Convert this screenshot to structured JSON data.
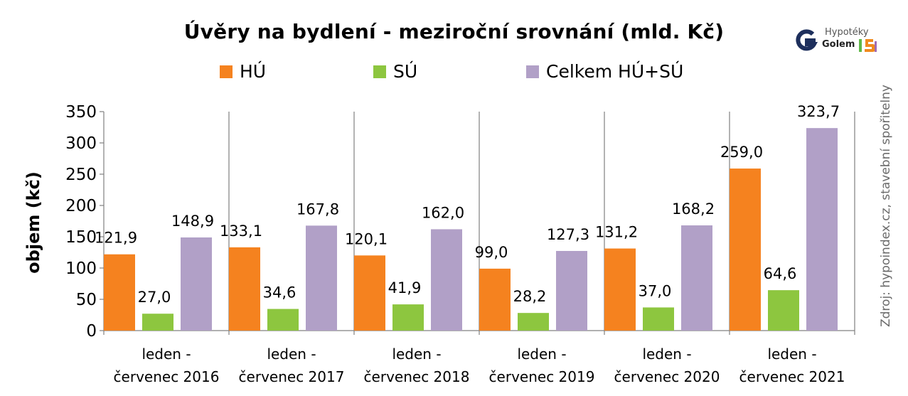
{
  "logo": {
    "line1": "Hypotéky",
    "line2": "Golem",
    "badge": "15 let",
    "colors": {
      "g": "#1d2f5c",
      "orange": "#f08a1e",
      "green": "#5fb848",
      "purple": "#a06cb4"
    }
  },
  "source_note": "Zdroj: hypoindex.cz, stavební spořitelny",
  "chart_data": {
    "type": "bar",
    "title": "Úvěry na bydlení - meziroční srovnání (mld. Kč)",
    "ylabel": "objem (kč)",
    "xlabel": "",
    "ylim": [
      0,
      350
    ],
    "yticks": [
      0,
      50,
      100,
      150,
      200,
      250,
      300,
      350
    ],
    "grid": false,
    "legend_position": "top",
    "categories": [
      [
        "leden -",
        "červenec 2016"
      ],
      [
        "leden -",
        "červenec 2017"
      ],
      [
        "leden -",
        "červenec 2018"
      ],
      [
        "leden -",
        "červenec 2019"
      ],
      [
        "leden -",
        "červenec 2020"
      ],
      [
        "leden -",
        "červenec 2021"
      ]
    ],
    "series": [
      {
        "name": "HÚ",
        "color": "#f5821f",
        "values": [
          121.9,
          133.1,
          120.1,
          99.0,
          131.2,
          259.0
        ],
        "labels": [
          "121,9",
          "133,1",
          "120,1",
          "99,0",
          "131,2",
          "259,0"
        ]
      },
      {
        "name": "SÚ",
        "color": "#8dc63f",
        "values": [
          27.0,
          34.6,
          41.9,
          28.2,
          37.0,
          64.6
        ],
        "labels": [
          "27,0",
          "34,6",
          "41,9",
          "28,2",
          "37,0",
          "64,6"
        ]
      },
      {
        "name": "Celkem HÚ+SÚ",
        "color": "#b1a0c7",
        "values": [
          148.9,
          167.8,
          162.0,
          127.3,
          168.2,
          323.7
        ],
        "labels": [
          "148,9",
          "167,8",
          "162,0",
          "127,3",
          "168,2",
          "323,7"
        ]
      }
    ]
  }
}
